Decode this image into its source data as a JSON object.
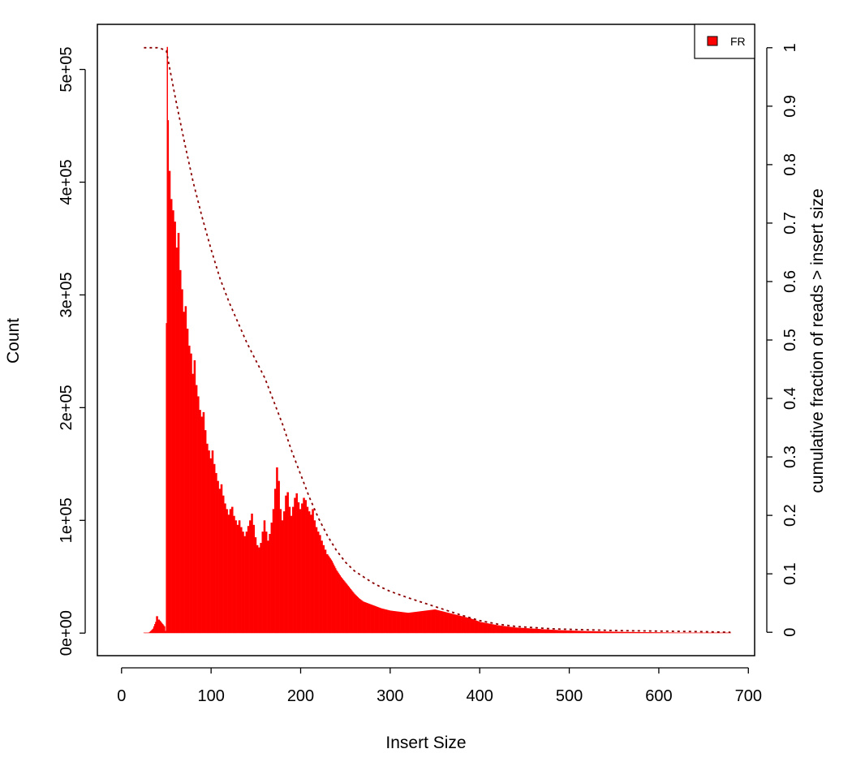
{
  "chart_data": {
    "type": "bar",
    "xlabel": "Insert Size",
    "ylabel": "Count",
    "y2label": "cumulative fraction of reads > insert size",
    "xlim": [
      -27,
      707
    ],
    "ylim": [
      -20000,
      540000
    ],
    "y2lim": [
      -0.04,
      1.04
    ],
    "x_ticks": [
      0,
      100,
      200,
      300,
      400,
      500,
      600,
      700
    ],
    "x_tick_labels": [
      "0",
      "100",
      "200",
      "300",
      "400",
      "500",
      "600",
      "700"
    ],
    "y_ticks": [
      0,
      100000,
      200000,
      300000,
      400000,
      500000
    ],
    "y_tick_labels": [
      "0e+00",
      "1e+05",
      "2e+05",
      "3e+05",
      "4e+05",
      "5e+05"
    ],
    "y2_ticks": [
      0,
      0.1,
      0.2,
      0.3,
      0.4,
      0.5,
      0.6,
      0.7,
      0.8,
      0.9,
      1
    ],
    "y2_tick_labels": [
      "0",
      "0.1",
      "0.2",
      "0.3",
      "0.4",
      "0.5",
      "0.6",
      "0.7",
      "0.8",
      "0.9",
      "1"
    ],
    "grid": false,
    "legend": {
      "position": "top-right",
      "entries": [
        "FR"
      ]
    },
    "colors": {
      "bars": "#ff0000",
      "cumulative": "#8b0000"
    },
    "series": [
      {
        "name": "FR",
        "type": "histogram",
        "points": [
          [
            25,
            0
          ],
          [
            30,
            0
          ],
          [
            35,
            4000
          ],
          [
            38,
            10000
          ],
          [
            40,
            15000
          ],
          [
            42,
            12000
          ],
          [
            45,
            9000
          ],
          [
            48,
            6000
          ],
          [
            49,
            2000
          ],
          [
            50,
            275000
          ],
          [
            51,
            520000
          ],
          [
            52,
            455000
          ],
          [
            54,
            410000
          ],
          [
            56,
            385000
          ],
          [
            58,
            375000
          ],
          [
            60,
            365000
          ],
          [
            62,
            342000
          ],
          [
            64,
            355000
          ],
          [
            66,
            322000
          ],
          [
            68,
            305000
          ],
          [
            70,
            285000
          ],
          [
            72,
            290000
          ],
          [
            74,
            270000
          ],
          [
            76,
            255000
          ],
          [
            78,
            248000
          ],
          [
            80,
            230000
          ],
          [
            82,
            242000
          ],
          [
            84,
            220000
          ],
          [
            86,
            210000
          ],
          [
            88,
            198000
          ],
          [
            90,
            192000
          ],
          [
            92,
            196000
          ],
          [
            94,
            180000
          ],
          [
            96,
            168000
          ],
          [
            98,
            162000
          ],
          [
            100,
            155000
          ],
          [
            102,
            162000
          ],
          [
            104,
            150000
          ],
          [
            106,
            142000
          ],
          [
            108,
            135000
          ],
          [
            110,
            128000
          ],
          [
            112,
            132000
          ],
          [
            114,
            122000
          ],
          [
            116,
            115000
          ],
          [
            118,
            110000
          ],
          [
            120,
            105000
          ],
          [
            122,
            110000
          ],
          [
            124,
            112000
          ],
          [
            126,
            104000
          ],
          [
            128,
            100000
          ],
          [
            130,
            96000
          ],
          [
            132,
            100000
          ],
          [
            134,
            94000
          ],
          [
            136,
            90000
          ],
          [
            138,
            86000
          ],
          [
            140,
            90000
          ],
          [
            142,
            95000
          ],
          [
            144,
            100000
          ],
          [
            146,
            106000
          ],
          [
            148,
            96000
          ],
          [
            150,
            85000
          ],
          [
            152,
            78000
          ],
          [
            154,
            76000
          ],
          [
            156,
            80000
          ],
          [
            158,
            90000
          ],
          [
            160,
            100000
          ],
          [
            162,
            90000
          ],
          [
            164,
            82000
          ],
          [
            166,
            88000
          ],
          [
            168,
            98000
          ],
          [
            170,
            110000
          ],
          [
            172,
            128000
          ],
          [
            174,
            147000
          ],
          [
            176,
            135000
          ],
          [
            178,
            110000
          ],
          [
            180,
            100000
          ],
          [
            182,
            108000
          ],
          [
            184,
            122000
          ],
          [
            186,
            125000
          ],
          [
            188,
            112000
          ],
          [
            190,
            104000
          ],
          [
            192,
            112000
          ],
          [
            194,
            120000
          ],
          [
            196,
            124000
          ],
          [
            198,
            116000
          ],
          [
            200,
            110000
          ],
          [
            202,
            115000
          ],
          [
            204,
            120000
          ],
          [
            206,
            118000
          ],
          [
            208,
            112000
          ],
          [
            210,
            108000
          ],
          [
            212,
            105000
          ],
          [
            214,
            110000
          ],
          [
            216,
            100000
          ],
          [
            218,
            94000
          ],
          [
            220,
            90000
          ],
          [
            222,
            87000
          ],
          [
            224,
            82000
          ],
          [
            226,
            78000
          ],
          [
            228,
            74000
          ],
          [
            230,
            70000
          ],
          [
            235,
            64000
          ],
          [
            240,
            56000
          ],
          [
            245,
            50000
          ],
          [
            250,
            45000
          ],
          [
            255,
            40000
          ],
          [
            260,
            35000
          ],
          [
            265,
            31000
          ],
          [
            270,
            28000
          ],
          [
            280,
            25000
          ],
          [
            290,
            22000
          ],
          [
            300,
            20000
          ],
          [
            310,
            19000
          ],
          [
            320,
            18000
          ],
          [
            330,
            19000
          ],
          [
            340,
            20000
          ],
          [
            350,
            21000
          ],
          [
            360,
            19000
          ],
          [
            370,
            17000
          ],
          [
            380,
            15000
          ],
          [
            390,
            13000
          ],
          [
            400,
            10000
          ],
          [
            410,
            8500
          ],
          [
            420,
            7000
          ],
          [
            430,
            6000
          ],
          [
            440,
            5000
          ],
          [
            450,
            4500
          ],
          [
            460,
            4000
          ],
          [
            470,
            3500
          ],
          [
            480,
            3000
          ],
          [
            490,
            2600
          ],
          [
            500,
            2300
          ],
          [
            520,
            1800
          ],
          [
            540,
            1400
          ],
          [
            560,
            1100
          ],
          [
            580,
            900
          ],
          [
            600,
            700
          ],
          [
            620,
            500
          ],
          [
            640,
            400
          ],
          [
            660,
            300
          ],
          [
            680,
            200
          ]
        ]
      },
      {
        "name": "cumulative",
        "type": "line",
        "axis": "right",
        "style": "dashed",
        "points": [
          [
            25,
            1.0
          ],
          [
            40,
            1.0
          ],
          [
            45,
            0.998
          ],
          [
            50,
            0.995
          ],
          [
            55,
            0.955
          ],
          [
            60,
            0.915
          ],
          [
            70,
            0.84
          ],
          [
            80,
            0.77
          ],
          [
            90,
            0.71
          ],
          [
            100,
            0.655
          ],
          [
            110,
            0.605
          ],
          [
            120,
            0.565
          ],
          [
            130,
            0.53
          ],
          [
            140,
            0.495
          ],
          [
            150,
            0.465
          ],
          [
            160,
            0.435
          ],
          [
            170,
            0.395
          ],
          [
            180,
            0.355
          ],
          [
            190,
            0.31
          ],
          [
            200,
            0.27
          ],
          [
            210,
            0.23
          ],
          [
            220,
            0.195
          ],
          [
            230,
            0.165
          ],
          [
            240,
            0.14
          ],
          [
            250,
            0.12
          ],
          [
            260,
            0.105
          ],
          [
            270,
            0.095
          ],
          [
            280,
            0.085
          ],
          [
            290,
            0.077
          ],
          [
            300,
            0.07
          ],
          [
            320,
            0.059
          ],
          [
            340,
            0.049
          ],
          [
            360,
            0.039
          ],
          [
            380,
            0.029
          ],
          [
            400,
            0.02
          ],
          [
            420,
            0.014
          ],
          [
            440,
            0.01
          ],
          [
            460,
            0.008
          ],
          [
            480,
            0.006
          ],
          [
            500,
            0.005
          ],
          [
            550,
            0.003
          ],
          [
            600,
            0.002
          ],
          [
            650,
            0.001
          ],
          [
            680,
            0.0
          ]
        ]
      }
    ]
  }
}
